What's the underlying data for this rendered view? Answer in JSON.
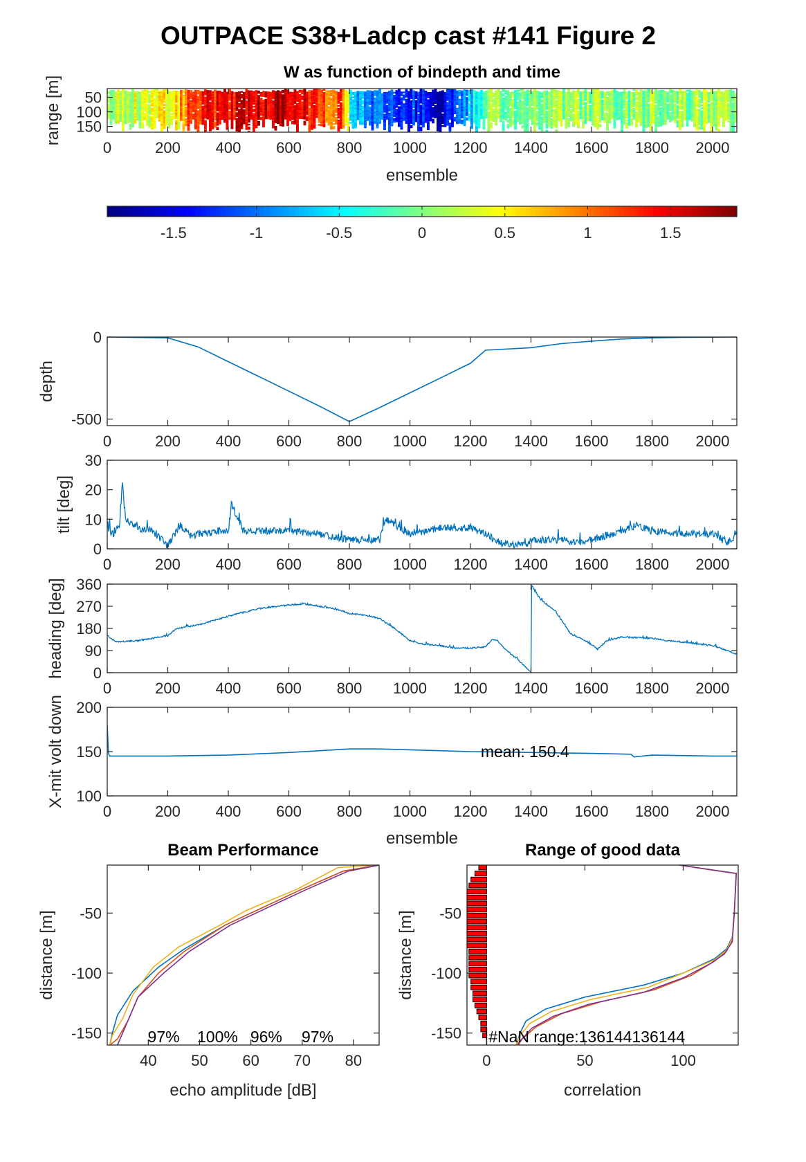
{
  "figure": {
    "title": "OUTPACE S38+Ladcp cast #141 Figure 2"
  },
  "chart_data": [
    {
      "type": "heatmap",
      "id": "w_panel",
      "title": "W as function of bindepth and time",
      "xlabel": "ensemble",
      "ylabel": "range [m]",
      "xlim": [
        0,
        2080
      ],
      "ylim": [
        170,
        20
      ],
      "xticks": [
        0,
        200,
        400,
        600,
        800,
        1000,
        1200,
        1400,
        1600,
        1800,
        2000
      ],
      "yticks": [
        50,
        100,
        150
      ],
      "colormap": "jet",
      "clim": [
        -1.9,
        1.9
      ],
      "colorbar_ticks": [
        -1.5,
        -1,
        -0.5,
        0,
        0.5,
        1,
        1.5
      ],
      "w_keyframes": {
        "x": [
          0,
          150,
          210,
          260,
          320,
          400,
          480,
          560,
          620,
          700,
          780,
          800,
          830,
          880,
          940,
          1000,
          1060,
          1100,
          1150,
          1200,
          1260,
          1400,
          1600,
          1800,
          2080
        ],
        "w": [
          0.2,
          0.3,
          0.5,
          1.0,
          1.3,
          1.4,
          1.6,
          1.7,
          1.5,
          1.2,
          1.1,
          -0.5,
          -0.8,
          -1.0,
          -1.2,
          -1.3,
          -1.3,
          -1.6,
          -1.0,
          -0.6,
          0.0,
          0.0,
          0.1,
          0.0,
          0.1
        ]
      }
    },
    {
      "type": "line",
      "id": "depth_panel",
      "ylabel": "depth",
      "xlim": [
        0,
        2080
      ],
      "ylim": [
        -540,
        0
      ],
      "xticks": [
        0,
        200,
        400,
        600,
        800,
        1000,
        1200,
        1400,
        1600,
        1800,
        2000
      ],
      "yticks": [
        -500,
        0
      ],
      "series": [
        {
          "x": [
            0,
            200,
            300,
            400,
            500,
            600,
            700,
            800,
            900,
            1000,
            1100,
            1200,
            1250,
            1400,
            1500,
            1600,
            1700,
            1800,
            1900,
            2000,
            2080
          ],
          "y": [
            0,
            -5,
            -60,
            -150,
            -240,
            -330,
            -420,
            -515,
            -430,
            -340,
            -250,
            -160,
            -80,
            -65,
            -40,
            -25,
            -12,
            -5,
            -2,
            -1,
            0
          ]
        }
      ]
    },
    {
      "type": "line",
      "id": "tilt_panel",
      "ylabel": "tilt [deg]",
      "xlim": [
        0,
        2080
      ],
      "ylim": [
        0,
        30
      ],
      "xticks": [
        0,
        200,
        400,
        600,
        800,
        1000,
        1200,
        1400,
        1600,
        1800,
        2000
      ],
      "yticks": [
        0,
        10,
        20,
        30
      ],
      "series": [
        {
          "x": [
            0,
            20,
            40,
            50,
            60,
            100,
            150,
            190,
            200,
            240,
            280,
            300,
            400,
            410,
            450,
            500,
            600,
            700,
            750,
            800,
            900,
            920,
            1000,
            1100,
            1200,
            1250,
            1300,
            1380,
            1400,
            1500,
            1550,
            1600,
            1700,
            1750,
            1800,
            1900,
            1950,
            2000,
            2050,
            2080
          ],
          "y": [
            7,
            5,
            8,
            22,
            10,
            7,
            6,
            2,
            1,
            8,
            4,
            5,
            6,
            15,
            6,
            6,
            6,
            5,
            4,
            3,
            3,
            10,
            5,
            7,
            7,
            5,
            2,
            1,
            3,
            3,
            2,
            3,
            6,
            8,
            6,
            5,
            5,
            5,
            2,
            4
          ]
        }
      ]
    },
    {
      "type": "line",
      "id": "heading_panel",
      "ylabel": "heading [deg]",
      "xlim": [
        0,
        2080
      ],
      "ylim": [
        0,
        360
      ],
      "xticks": [
        0,
        200,
        400,
        600,
        800,
        1000,
        1200,
        1400,
        1600,
        1800,
        2000
      ],
      "yticks": [
        0,
        90,
        180,
        270,
        360
      ],
      "series": [
        {
          "x": [
            0,
            30,
            100,
            150,
            200,
            230,
            280,
            320,
            400,
            500,
            600,
            650,
            700,
            750,
            780,
            800,
            850,
            900,
            950,
            1000,
            1050,
            1100,
            1150,
            1200,
            1250,
            1270,
            1290,
            1310,
            1350,
            1380,
            1400,
            1401,
            1430,
            1480,
            1530,
            1580,
            1610,
            1620,
            1650,
            1700,
            1800,
            1850,
            1900,
            2000,
            2050,
            2080
          ],
          "y": [
            150,
            125,
            130,
            140,
            150,
            180,
            190,
            200,
            230,
            260,
            275,
            280,
            270,
            260,
            250,
            240,
            235,
            220,
            180,
            130,
            115,
            110,
            100,
            100,
            105,
            135,
            130,
            100,
            60,
            25,
            2,
            355,
            300,
            250,
            160,
            130,
            105,
            95,
            130,
            145,
            140,
            130,
            125,
            110,
            90,
            75
          ]
        }
      ]
    },
    {
      "type": "line",
      "id": "volt_panel",
      "ylabel": "X-mit volt down",
      "xlabel": "ensemble",
      "annotation": "mean: 150.4",
      "xlim": [
        0,
        2080
      ],
      "ylim": [
        100,
        200
      ],
      "xticks": [
        0,
        200,
        400,
        600,
        800,
        1000,
        1200,
        1400,
        1600,
        1800,
        2000
      ],
      "yticks": [
        100,
        150,
        200
      ],
      "series": [
        {
          "x": [
            0,
            4,
            8,
            20,
            200,
            400,
            600,
            800,
            900,
            1000,
            1200,
            1400,
            1600,
            1730,
            1740,
            1800,
            2000,
            2080
          ],
          "y": [
            180,
            148,
            145,
            145,
            145,
            146,
            149,
            153,
            153,
            152,
            150,
            149,
            148,
            147,
            144,
            146,
            145,
            145
          ]
        }
      ]
    },
    {
      "type": "line",
      "id": "beam_panel",
      "title": "Beam Performance",
      "xlabel": "echo amplitude [dB]",
      "ylabel": "distance [m]",
      "xlim": [
        32,
        85
      ],
      "ylim": [
        -160,
        -10
      ],
      "xticks": [
        40,
        50,
        60,
        70,
        80
      ],
      "yticks": [
        -150,
        -100,
        -50
      ],
      "beam_percentages": [
        "97%",
        "100%",
        "96%",
        "97%"
      ],
      "colors": [
        "#0072BD",
        "#D95319",
        "#EDB120",
        "#7E2F8E"
      ],
      "series": [
        {
          "x": [
            85,
            78,
            70,
            60,
            55,
            47,
            42,
            37,
            34,
            33,
            32.5
          ],
          "y": [
            -10,
            -15,
            -30,
            -50,
            -60,
            -80,
            -95,
            -115,
            -135,
            -150,
            -160
          ]
        },
        {
          "x": [
            85,
            78,
            70,
            60,
            55,
            47,
            42,
            38,
            36,
            34,
            32.5
          ],
          "y": [
            -10,
            -15,
            -30,
            -50,
            -60,
            -82,
            -100,
            -120,
            -140,
            -155,
            -160
          ]
        },
        {
          "x": [
            85,
            77,
            69,
            59,
            54,
            46,
            41,
            37,
            35,
            33,
            32.5
          ],
          "y": [
            -10,
            -12,
            -30,
            -48,
            -60,
            -78,
            -95,
            -118,
            -138,
            -152,
            -160
          ]
        },
        {
          "x": [
            85,
            79,
            71,
            61,
            56,
            48,
            43,
            38,
            36,
            34.5,
            34
          ],
          "y": [
            -10,
            -15,
            -30,
            -50,
            -60,
            -82,
            -100,
            -120,
            -140,
            -155,
            -160
          ]
        }
      ]
    },
    {
      "type": "line",
      "id": "range_panel",
      "title": "Range of good data",
      "xlabel": "correlation",
      "ylabel": "distance [m]",
      "annotation": "#NaN range:136144136144",
      "xlim": [
        -10,
        128
      ],
      "ylim": [
        -160,
        -10
      ],
      "xticks": [
        0,
        50,
        100
      ],
      "yticks": [
        -150,
        -100,
        -50
      ],
      "colors": [
        "#0072BD",
        "#D95319",
        "#EDB120",
        "#7E2F8E"
      ],
      "bars": {
        "y": [
          -12,
          -17,
          -22,
          -27,
          -32,
          -37,
          -42,
          -47,
          -52,
          -57,
          -62,
          -67,
          -72,
          -77,
          -82,
          -87,
          -92,
          -97,
          -102,
          -107,
          -112,
          -117,
          -122,
          -127,
          -132,
          -137,
          -142,
          -147,
          -152
        ],
        "x": [
          -4,
          -6,
          -8,
          -9,
          -10,
          -10,
          -10,
          -10,
          -10,
          -10,
          -10,
          -10,
          -10,
          -10,
          -9,
          -9,
          -9,
          -9,
          -9,
          -8,
          -8,
          -7,
          -7,
          -6,
          -5,
          -4,
          -3,
          -3,
          -2
        ]
      },
      "series": [
        {
          "x": [
            98,
            127,
            126,
            125,
            122,
            116,
            100,
            80,
            50,
            30,
            20,
            17,
            15
          ],
          "y": [
            -10,
            -17,
            -50,
            -70,
            -80,
            -88,
            -100,
            -110,
            -120,
            -130,
            -140,
            -150,
            -160
          ]
        },
        {
          "x": [
            98,
            127,
            126,
            125,
            122,
            116,
            104,
            85,
            58,
            38,
            25,
            18,
            15
          ],
          "y": [
            -10,
            -17,
            -50,
            -72,
            -82,
            -90,
            -102,
            -114,
            -124,
            -134,
            -145,
            -155,
            -160
          ]
        },
        {
          "x": [
            98,
            127,
            126,
            125,
            122,
            116,
            100,
            82,
            53,
            33,
            22,
            17,
            15
          ],
          "y": [
            -10,
            -17,
            -50,
            -71,
            -81,
            -89,
            -100,
            -112,
            -122,
            -132,
            -142,
            -152,
            -160
          ]
        },
        {
          "x": [
            98,
            127,
            126,
            125,
            121,
            114,
            100,
            80,
            52,
            34,
            23,
            18,
            16
          ],
          "y": [
            -10,
            -17,
            -50,
            -74,
            -84,
            -92,
            -104,
            -116,
            -126,
            -136,
            -146,
            -155,
            -160
          ]
        }
      ]
    }
  ]
}
